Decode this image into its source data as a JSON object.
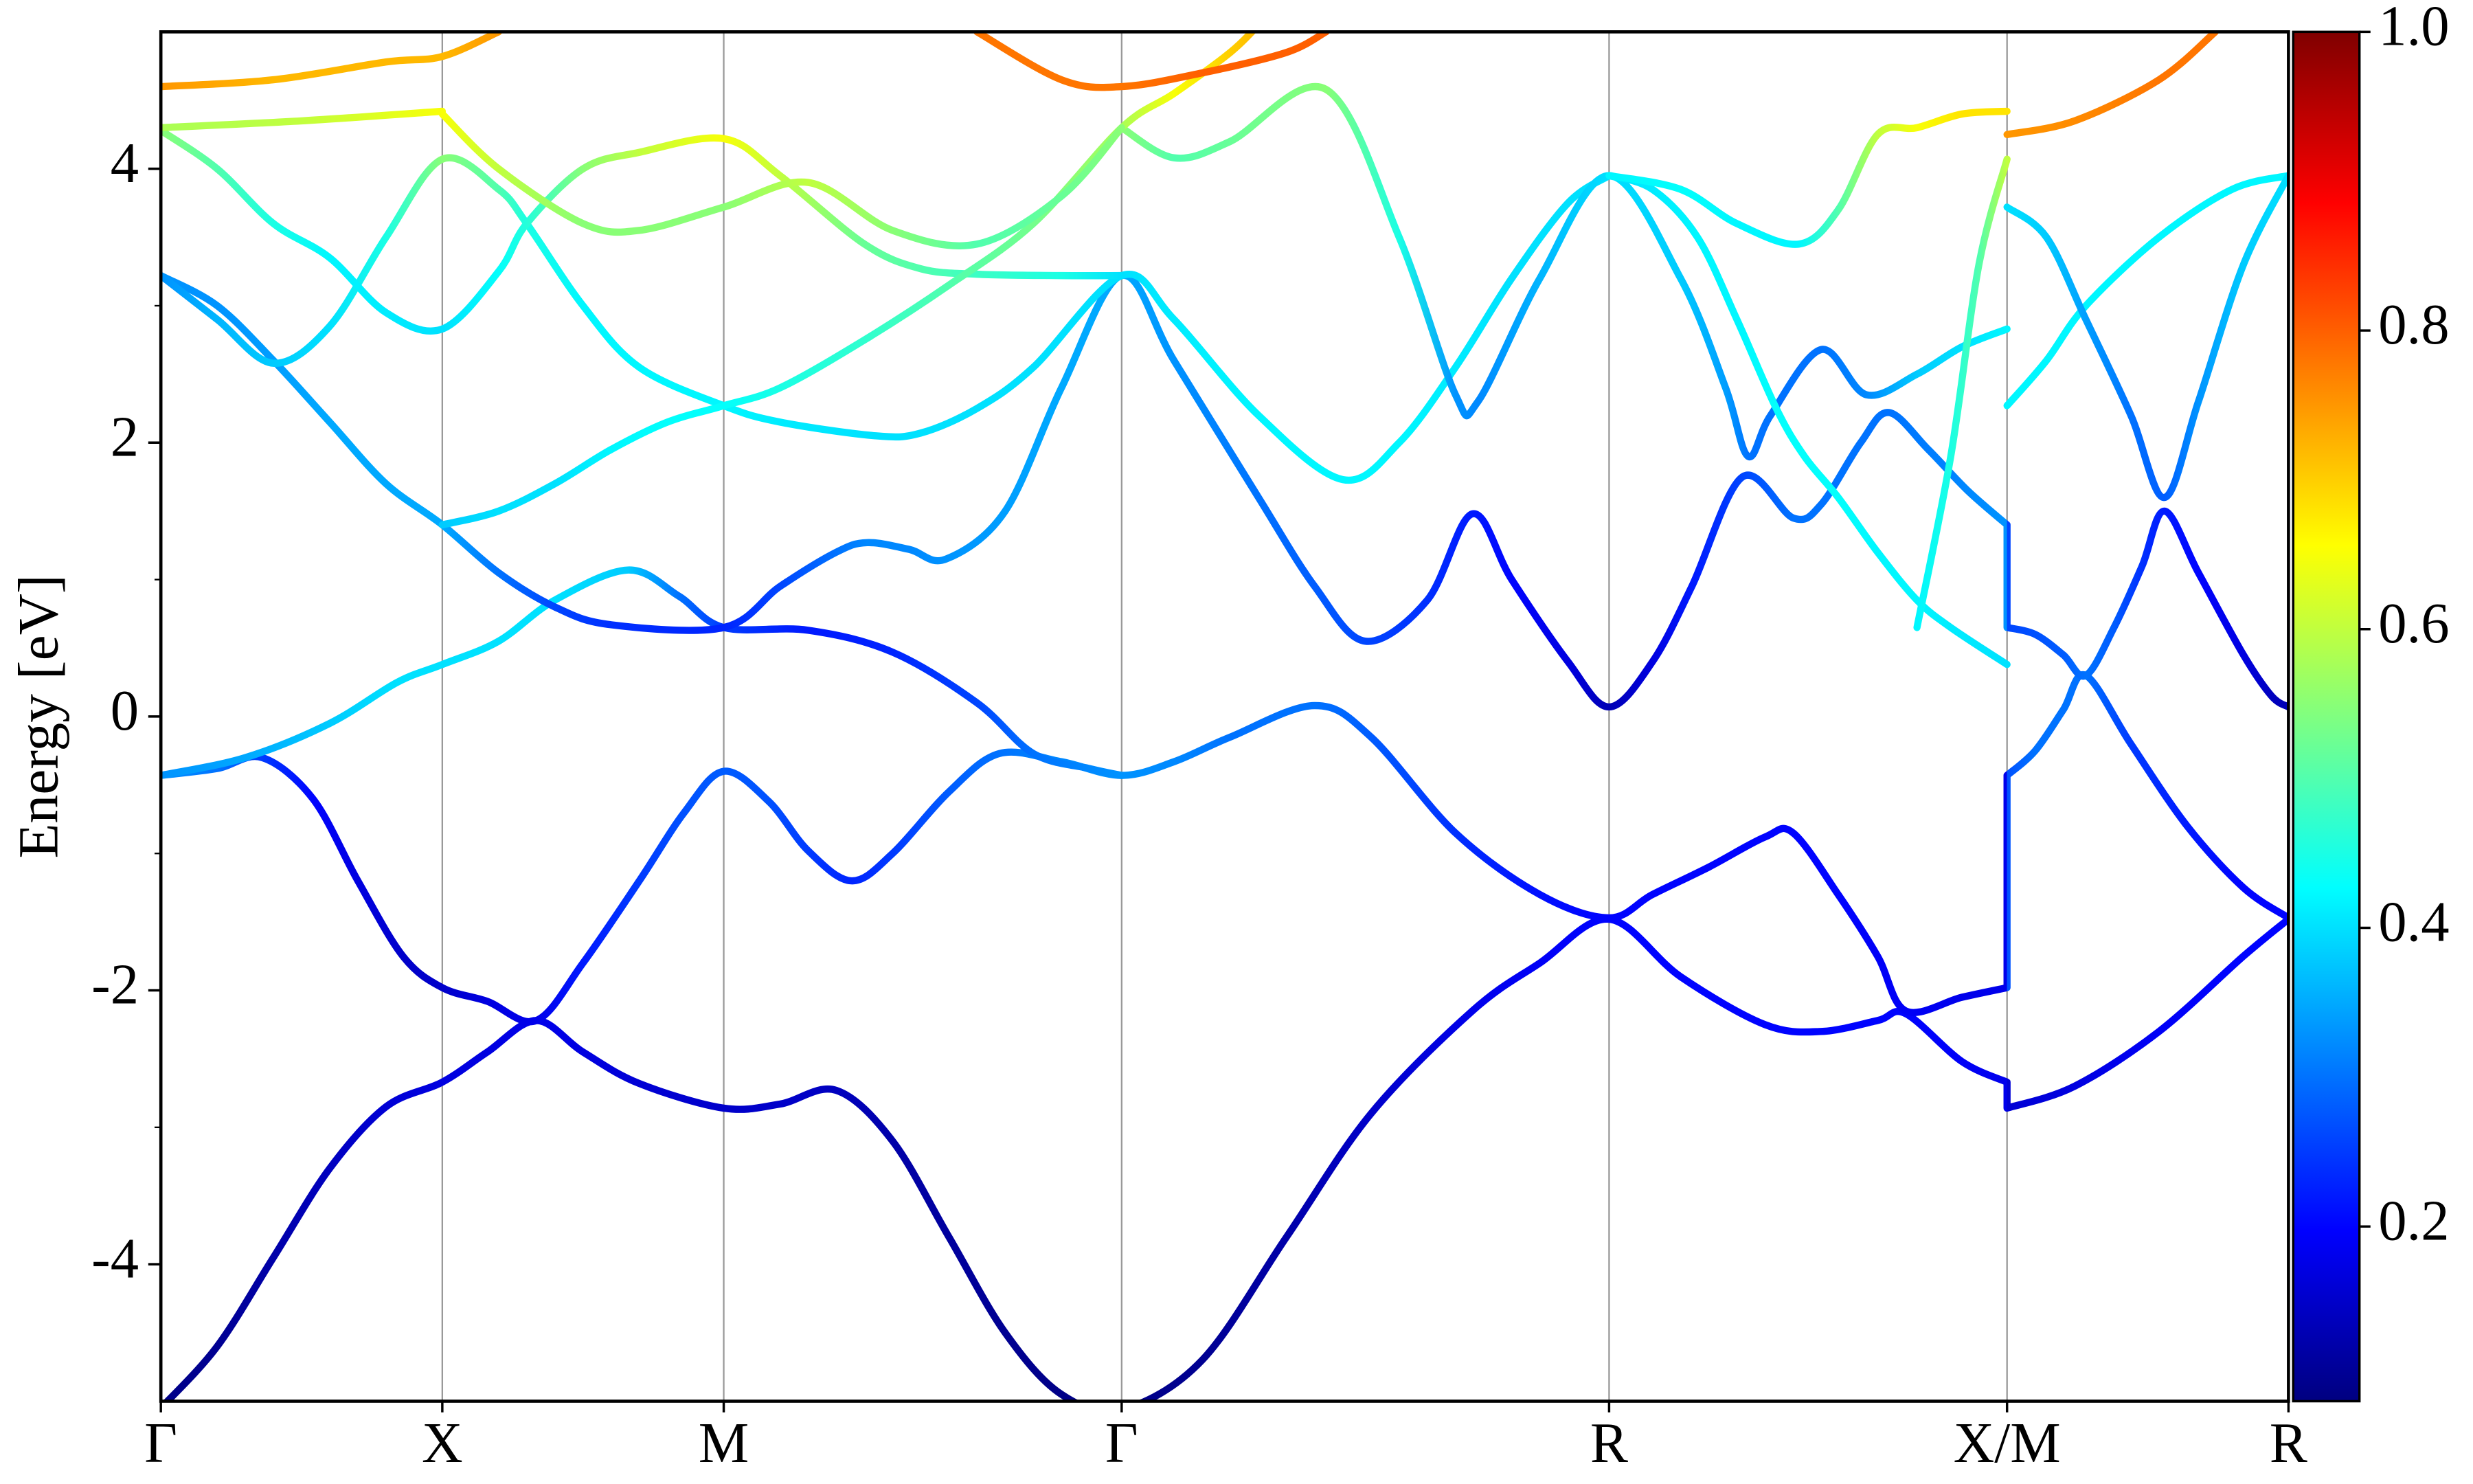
{
  "chart_data": {
    "type": "line",
    "ylabel": "Energy [eV]",
    "xlim": [
      0,
      3.78
    ],
    "ylim": [
      -5,
      5
    ],
    "xticks": [
      {
        "value": 0,
        "label": "Γ"
      },
      {
        "value": 0.5,
        "label": "X"
      },
      {
        "value": 1.0,
        "label": "M"
      },
      {
        "value": 1.707,
        "label": "Γ"
      },
      {
        "value": 2.573,
        "label": "R"
      },
      {
        "value": 3.28,
        "label": "X/M"
      },
      {
        "value": 3.78,
        "label": "R"
      }
    ],
    "yticks": [
      -4,
      -2,
      0,
      2,
      4
    ],
    "yminorticks": [
      -3,
      -1,
      1,
      3
    ],
    "vlines": true,
    "colormap": "jet",
    "clim": [
      0.083,
      1.0
    ],
    "cticks": [
      0.2,
      0.4,
      0.6,
      0.8,
      {
        "value": 1.0,
        "label": "1.0"
      }
    ],
    "series": [
      {
        "x": [
          0,
          0.1,
          0.2,
          0.3,
          0.4,
          0.5,
          0.58,
          0.667,
          0.75,
          0.85,
          1.0,
          1.1,
          1.2,
          1.3,
          1.4,
          1.5,
          1.6,
          1.707,
          1.85,
          2.0,
          2.15,
          2.33,
          2.45,
          2.573,
          2.7,
          2.85,
          2.95,
          3.05,
          3.1,
          3.2,
          3.28,
          3.28,
          3.4,
          3.55,
          3.7,
          3.78
        ],
        "values": [
          -5.05,
          -4.6,
          -3.95,
          -3.3,
          -2.85,
          -2.67,
          -2.45,
          -2.22,
          -2.45,
          -2.68,
          -2.86,
          -2.83,
          -2.73,
          -3.1,
          -3.8,
          -4.5,
          -4.95,
          -5.06,
          -4.7,
          -3.8,
          -2.9,
          -2.15,
          -1.8,
          -1.48,
          -1.9,
          -2.25,
          -2.3,
          -2.22,
          -2.17,
          -2.52,
          -2.67,
          -2.86,
          -2.7,
          -2.3,
          -1.75,
          -1.48
        ],
        "weights": [
          0.09,
          0.1,
          0.12,
          0.14,
          0.16,
          0.17,
          0.17,
          0.18,
          0.17,
          0.16,
          0.15,
          0.15,
          0.14,
          0.12,
          0.11,
          0.1,
          0.09,
          0.09,
          0.1,
          0.12,
          0.15,
          0.18,
          0.19,
          0.2,
          0.2,
          0.2,
          0.2,
          0.2,
          0.2,
          0.19,
          0.18,
          0.16,
          0.17,
          0.19,
          0.2,
          0.2
        ]
      },
      {
        "x": [
          0,
          0.1,
          0.18,
          0.27,
          0.35,
          0.43,
          0.5,
          0.58,
          0.667,
          0.75,
          0.85,
          0.93,
          1.0,
          1.08,
          1.15,
          1.227,
          1.3,
          1.4,
          1.49,
          1.6,
          1.707,
          1.8,
          1.9,
          2.05,
          2.15,
          2.3,
          2.45,
          2.573,
          2.65,
          2.75,
          2.85,
          2.9,
          2.98,
          3.05,
          3.1,
          3.2,
          3.28,
          3.28,
          3.33,
          3.38,
          3.42,
          3.5,
          3.6,
          3.7,
          3.78
        ],
        "values": [
          -0.43,
          -0.38,
          -0.3,
          -0.6,
          -1.2,
          -1.75,
          -1.98,
          -2.08,
          -2.22,
          -1.8,
          -1.2,
          -0.7,
          -0.4,
          -0.62,
          -0.98,
          -1.2,
          -1.0,
          -0.55,
          -0.27,
          -0.33,
          -0.43,
          -0.33,
          -0.15,
          0.08,
          -0.15,
          -0.85,
          -1.3,
          -1.47,
          -1.3,
          -1.1,
          -0.88,
          -0.85,
          -1.3,
          -1.75,
          -2.15,
          -2.05,
          -1.98,
          -0.43,
          -0.25,
          0.05,
          0.3,
          -0.2,
          -0.8,
          -1.25,
          -1.47
        ],
        "weights": [
          0.33,
          0.3,
          0.25,
          0.2,
          0.17,
          0.15,
          0.15,
          0.17,
          0.18,
          0.22,
          0.25,
          0.27,
          0.28,
          0.27,
          0.25,
          0.23,
          0.25,
          0.28,
          0.3,
          0.32,
          0.33,
          0.32,
          0.3,
          0.3,
          0.28,
          0.24,
          0.21,
          0.2,
          0.2,
          0.2,
          0.2,
          0.2,
          0.2,
          0.19,
          0.19,
          0.18,
          0.18,
          0.27,
          0.3,
          0.3,
          0.3,
          0.25,
          0.22,
          0.2,
          0.2
        ]
      },
      {
        "x": [
          0,
          0.15,
          0.3,
          0.42,
          0.5,
          0.6,
          0.7,
          0.83,
          0.92,
          1.0,
          1.15,
          1.3,
          1.45,
          1.55,
          1.65,
          1.707
        ],
        "values": [
          -0.43,
          -0.3,
          -0.05,
          0.25,
          0.38,
          0.55,
          0.85,
          1.07,
          0.88,
          0.65,
          0.63,
          0.47,
          0.1,
          -0.27,
          -0.38,
          -0.43
        ],
        "weights": [
          0.33,
          0.35,
          0.38,
          0.4,
          0.4,
          0.4,
          0.4,
          0.38,
          0.3,
          0.25,
          0.22,
          0.23,
          0.26,
          0.3,
          0.32,
          0.33
        ]
      },
      {
        "x": [
          0,
          0.1,
          0.2,
          0.3,
          0.4,
          0.5,
          0.6,
          0.7,
          0.8,
          1.0,
          1.1,
          1.2,
          1.255,
          1.33,
          1.395,
          1.5,
          1.6,
          1.707,
          1.8,
          1.95,
          2.05,
          2.14,
          2.25,
          2.33,
          2.4,
          2.5,
          2.573,
          2.65,
          2.72,
          2.81,
          2.9,
          2.95,
          3.02,
          3.07,
          3.14,
          3.21,
          3.28,
          3.28,
          3.33,
          3.38,
          3.42,
          3.47,
          3.52,
          3.56,
          3.62,
          3.7,
          3.75,
          3.78
        ],
        "values": [
          3.22,
          3.0,
          2.6,
          2.15,
          1.7,
          1.4,
          1.05,
          0.8,
          0.67,
          0.65,
          0.95,
          1.2,
          1.27,
          1.22,
          1.15,
          1.5,
          2.4,
          3.22,
          2.6,
          1.6,
          0.95,
          0.55,
          0.85,
          1.48,
          1.0,
          0.4,
          0.07,
          0.4,
          0.95,
          1.75,
          1.45,
          1.55,
          2.0,
          2.22,
          1.95,
          1.65,
          1.4,
          0.65,
          0.6,
          0.45,
          0.3,
          0.65,
          1.1,
          1.5,
          1.05,
          0.45,
          0.15,
          0.07
        ],
        "weights": [
          0.33,
          0.33,
          0.34,
          0.35,
          0.35,
          0.35,
          0.3,
          0.26,
          0.24,
          0.23,
          0.26,
          0.3,
          0.32,
          0.32,
          0.33,
          0.34,
          0.35,
          0.35,
          0.33,
          0.3,
          0.28,
          0.26,
          0.24,
          0.22,
          0.2,
          0.17,
          0.13,
          0.17,
          0.22,
          0.26,
          0.3,
          0.3,
          0.3,
          0.3,
          0.31,
          0.32,
          0.33,
          0.26,
          0.27,
          0.28,
          0.3,
          0.28,
          0.24,
          0.22,
          0.2,
          0.17,
          0.14,
          0.13
        ]
      },
      {
        "x": [
          0,
          0.1,
          0.2,
          0.3,
          0.4,
          0.5,
          0.6,
          0.65,
          0.75,
          0.85,
          1.0,
          1.1,
          1.27,
          1.35,
          1.45,
          1.55,
          1.707,
          1.8,
          1.95,
          2.1,
          2.2,
          2.3,
          2.4,
          2.5,
          2.573
        ],
        "values": [
          3.22,
          2.9,
          2.58,
          2.85,
          3.5,
          4.07,
          3.85,
          3.6,
          3.0,
          2.55,
          2.27,
          2.15,
          2.05,
          2.07,
          2.25,
          2.55,
          3.22,
          2.9,
          2.2,
          1.73,
          2.0,
          2.55,
          3.2,
          3.75,
          3.95
        ],
        "weights": [
          0.33,
          0.36,
          0.38,
          0.4,
          0.45,
          0.55,
          0.5,
          0.45,
          0.42,
          0.42,
          0.42,
          0.41,
          0.4,
          0.4,
          0.4,
          0.4,
          0.4,
          0.41,
          0.42,
          0.42,
          0.42,
          0.41,
          0.4,
          0.4,
          0.4
        ]
      },
      {
        "x": [
          0,
          0.1,
          0.2,
          0.3,
          0.4,
          0.5,
          0.6,
          0.65,
          0.75,
          0.85,
          1.0,
          1.1,
          1.25,
          1.35,
          1.45,
          1.6,
          1.707
        ],
        "values": [
          4.28,
          4.0,
          3.6,
          3.35,
          2.95,
          2.83,
          3.25,
          3.6,
          4.0,
          4.12,
          4.22,
          3.95,
          3.45,
          3.27,
          3.23,
          3.22,
          3.22
        ],
        "weights": [
          0.55,
          0.5,
          0.45,
          0.42,
          0.41,
          0.4,
          0.43,
          0.46,
          0.55,
          0.6,
          0.65,
          0.6,
          0.52,
          0.5,
          0.48,
          0.45,
          0.4
        ]
      },
      {
        "x": [
          1.707,
          1.8,
          1.9,
          2.07,
          2.2,
          2.3,
          2.34,
          2.45,
          2.573,
          2.7,
          2.78,
          2.82,
          2.86,
          2.95,
          3.03,
          3.12,
          3.2,
          3.28
        ],
        "values": [
          4.3,
          4.08,
          4.2,
          4.58,
          3.5,
          2.35,
          2.3,
          3.2,
          3.95,
          3.2,
          2.4,
          1.9,
          2.2,
          2.68,
          2.35,
          2.5,
          2.7,
          2.83
        ],
        "weights": [
          0.55,
          0.5,
          0.52,
          0.55,
          0.45,
          0.33,
          0.32,
          0.36,
          0.4,
          0.38,
          0.34,
          0.3,
          0.3,
          0.3,
          0.32,
          0.38,
          0.4,
          0.42
        ]
      },
      {
        "x": [
          0.5,
          0.6,
          0.7,
          0.8,
          0.9,
          1.0,
          1.1,
          1.25,
          1.4,
          1.55,
          1.707,
          1.8,
          1.9,
          1.95
        ],
        "values": [
          1.4,
          1.5,
          1.7,
          1.95,
          2.15,
          2.27,
          2.4,
          2.75,
          3.15,
          3.6,
          4.3,
          4.55,
          4.85,
          5.05
        ],
        "weights": [
          0.38,
          0.4,
          0.4,
          0.42,
          0.43,
          0.43,
          0.45,
          0.47,
          0.5,
          0.53,
          0.58,
          0.65,
          0.7,
          0.72
        ]
      },
      {
        "x": [
          2.573,
          2.65,
          2.73,
          2.8,
          2.87,
          2.92,
          2.98,
          3.05,
          3.12,
          3.18,
          3.28
        ],
        "values": [
          3.95,
          3.85,
          3.5,
          2.9,
          2.25,
          1.9,
          1.6,
          1.2,
          0.85,
          0.65,
          0.38
        ],
        "weights": [
          0.4,
          0.41,
          0.42,
          0.42,
          0.43,
          0.43,
          0.43,
          0.42,
          0.42,
          0.41,
          0.4
        ]
      },
      {
        "x": [
          3.12,
          3.18,
          3.23,
          3.28
        ],
        "values": [
          0.65,
          1.9,
          3.3,
          4.07
        ],
        "weights": [
          0.42,
          0.45,
          0.5,
          0.6
        ]
      },
      {
        "x": [
          2.573,
          2.7,
          2.8,
          2.91,
          2.98,
          3.05,
          3.12,
          3.2,
          3.28
        ],
        "values": [
          3.95,
          3.85,
          3.6,
          3.45,
          3.7,
          4.25,
          4.3,
          4.4,
          4.42
        ],
        "weights": [
          0.42,
          0.43,
          0.42,
          0.42,
          0.5,
          0.6,
          0.65,
          0.68,
          0.68
        ]
      },
      {
        "x": [
          3.28,
          3.35,
          3.42,
          3.55,
          3.68,
          3.78
        ],
        "values": [
          2.27,
          2.6,
          3.0,
          3.5,
          3.85,
          3.95
        ],
        "weights": [
          0.42,
          0.42,
          0.42,
          0.42,
          0.42,
          0.42
        ]
      },
      {
        "x": [
          3.28,
          3.35,
          3.42,
          3.5,
          3.56,
          3.62,
          3.7,
          3.78
        ],
        "values": [
          3.72,
          3.5,
          2.9,
          2.2,
          1.6,
          2.3,
          3.3,
          3.95
        ],
        "weights": [
          0.4,
          0.38,
          0.34,
          0.3,
          0.28,
          0.33,
          0.38,
          0.4
        ]
      },
      {
        "x": [
          3.28,
          3.4,
          3.55,
          3.65
        ],
        "values": [
          4.25,
          4.35,
          4.65,
          5.0
        ],
        "weights": [
          0.75,
          0.76,
          0.78,
          0.78
        ]
      },
      {
        "x": [
          0,
          0.2,
          0.4,
          0.5,
          0.6
        ],
        "values": [
          4.6,
          4.65,
          4.78,
          4.82,
          5.0
        ],
        "weights": [
          0.75,
          0.72,
          0.72,
          0.72,
          0.75
        ]
      },
      {
        "x": [
          1.45,
          1.6,
          1.707,
          1.85,
          2.0,
          2.07
        ],
        "values": [
          5.0,
          4.65,
          4.6,
          4.7,
          4.85,
          5.0
        ],
        "weights": [
          0.78,
          0.78,
          0.78,
          0.8,
          0.8,
          0.8
        ]
      },
      {
        "x": [
          0.5,
          0.6,
          0.75,
          0.85,
          1.0,
          1.15,
          1.3,
          1.45,
          1.6,
          1.707
        ],
        "values": [
          4.4,
          4.0,
          3.6,
          3.55,
          3.72,
          3.9,
          3.55,
          3.45,
          3.8,
          4.3
        ],
        "weights": [
          0.65,
          0.6,
          0.55,
          0.55,
          0.55,
          0.6,
          0.55,
          0.5,
          0.52,
          0.55
        ]
      },
      {
        "x": [
          0,
          0.25,
          0.5
        ],
        "values": [
          4.3,
          4.35,
          4.42
        ],
        "weights": [
          0.58,
          0.6,
          0.65
        ]
      }
    ]
  }
}
